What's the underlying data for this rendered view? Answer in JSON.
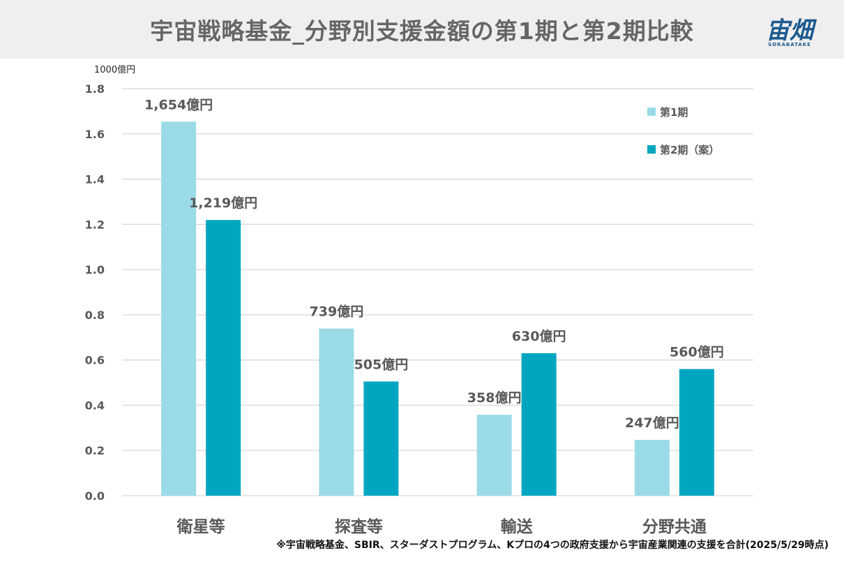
{
  "header": {
    "title": "宇宙戦略基金_分野別支援金額の第1期と第2期比較"
  },
  "logo": {
    "text": "宙畑",
    "subtext": "SORABATAKE"
  },
  "footnote": "※宇宙戦略基金、SBIR、スターダストプログラム、Kプロの4つの政府支援から宇宙産業関連の支援を合計(2025/5/29時点)",
  "colors": {
    "series1": "#9bdbe8",
    "series2": "#00a6bf",
    "grid": "#d9d9d9",
    "text": "#595959"
  },
  "chart_data": {
    "type": "bar",
    "ylabel": "1000億円",
    "ylim": [
      0,
      1.8
    ],
    "yticks": [
      "0.0",
      "0.2",
      "0.4",
      "0.6",
      "0.8",
      "1.0",
      "1.2",
      "1.4",
      "1.6",
      "1.8"
    ],
    "categories": [
      "衛星等",
      "探査等",
      "輸送",
      "分野共通"
    ],
    "series": [
      {
        "name": "第1期",
        "values": [
          1.654,
          0.739,
          0.358,
          0.247
        ],
        "labels": [
          "1,654億円",
          "739億円",
          "358億円",
          "247億円"
        ]
      },
      {
        "name": "第2期（案）",
        "values": [
          1.219,
          0.505,
          0.63,
          0.56
        ],
        "labels": [
          "1,219億円",
          "505億円",
          "630億円",
          "560億円"
        ]
      }
    ],
    "grid": true,
    "legend": "top-right"
  }
}
